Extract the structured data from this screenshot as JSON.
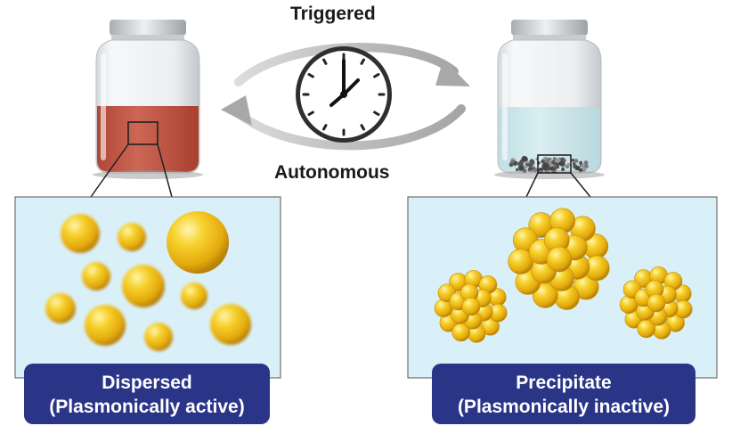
{
  "cycle": {
    "top_label": "Triggered",
    "bottom_label": "Autonomous"
  },
  "left_state": {
    "line1": "Dispersed",
    "line2": "(Plasmonically active)",
    "liquid_color": "#c45a4a"
  },
  "right_state": {
    "line1": "Precipitate",
    "line2": "(Plasmonically inactive)",
    "liquid_color": "#cfe8ec"
  },
  "colors": {
    "badge_bg": "#2a3587",
    "panel_bg": "#daf0f8",
    "particle": "#f2c21b"
  },
  "icons": [
    "clock-icon",
    "arrow-right-icon",
    "arrow-left-icon"
  ]
}
